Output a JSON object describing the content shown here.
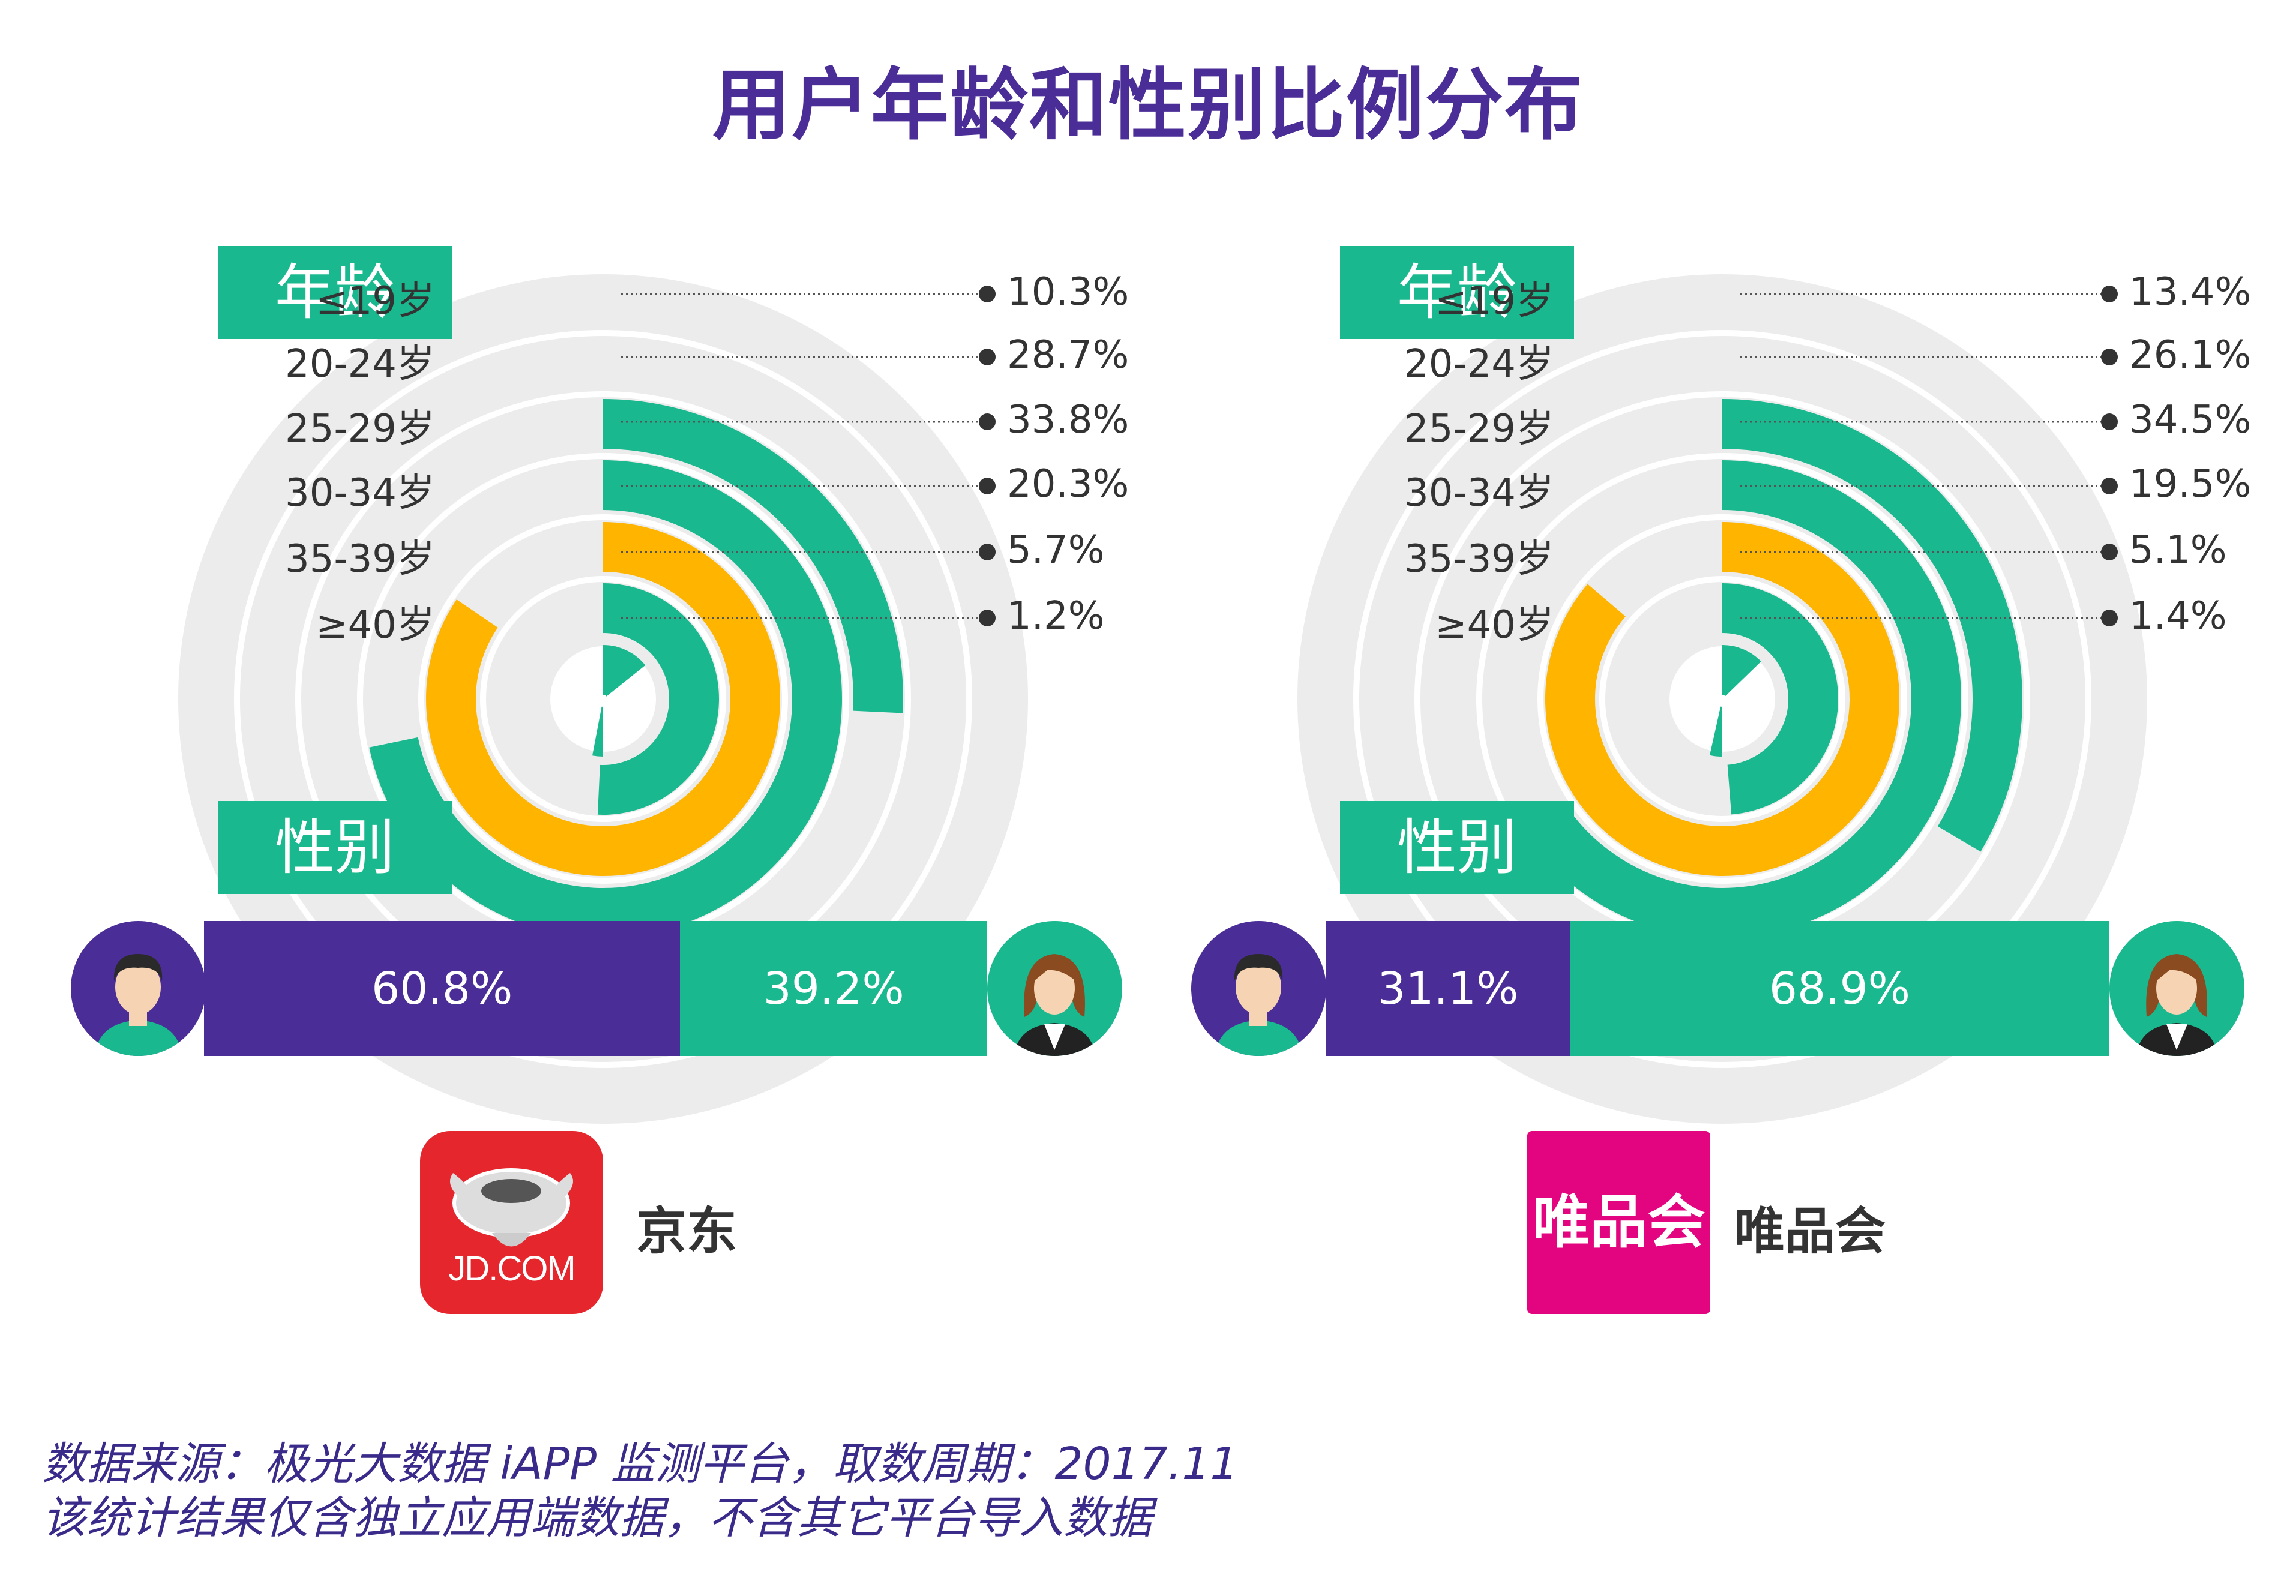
{
  "title": "用户年龄和性别比例分布",
  "age_tag": "年龄",
  "gender_tag": "性别",
  "colors": {
    "green": "#19b88e",
    "orange": "#ffb400",
    "purple": "#4a2d96",
    "ring": "#ececec"
  },
  "chart_data": [
    {
      "type": "radial-bar",
      "platform": "京东",
      "logo_text": "JD.COM",
      "categories": [
        "≤19岁",
        "20-24岁",
        "25-29岁",
        "30-34岁",
        "35-39岁",
        "≥40岁"
      ],
      "values": [
        10.3,
        28.7,
        33.8,
        20.3,
        5.7,
        1.2
      ],
      "labels": [
        "10.3%",
        "28.7%",
        "33.8%",
        "20.3%",
        "5.7%",
        "1.2%"
      ],
      "highlight": "25-29岁",
      "gender": {
        "male": 60.8,
        "female": 39.2,
        "male_label": "60.8%",
        "female_label": "39.2%"
      }
    },
    {
      "type": "radial-bar",
      "platform": "唯品会",
      "logo_text": "唯品会",
      "categories": [
        "≤19岁",
        "20-24岁",
        "25-29岁",
        "30-34岁",
        "35-39岁",
        "≥40岁"
      ],
      "values": [
        13.4,
        26.1,
        34.5,
        19.5,
        5.1,
        1.4
      ],
      "labels": [
        "13.4%",
        "26.1%",
        "34.5%",
        "19.5%",
        "5.1%",
        "1.4%"
      ],
      "highlight": "25-29岁",
      "gender": {
        "male": 31.1,
        "female": 68.9,
        "male_label": "31.1%",
        "female_label": "68.9%"
      }
    }
  ],
  "source_lines": [
    "数据来源：极光大数据 iAPP 监测平台，取数周期：2017.11",
    "该统计结果仅含独立应用端数据，不含其它平台导入数据"
  ]
}
